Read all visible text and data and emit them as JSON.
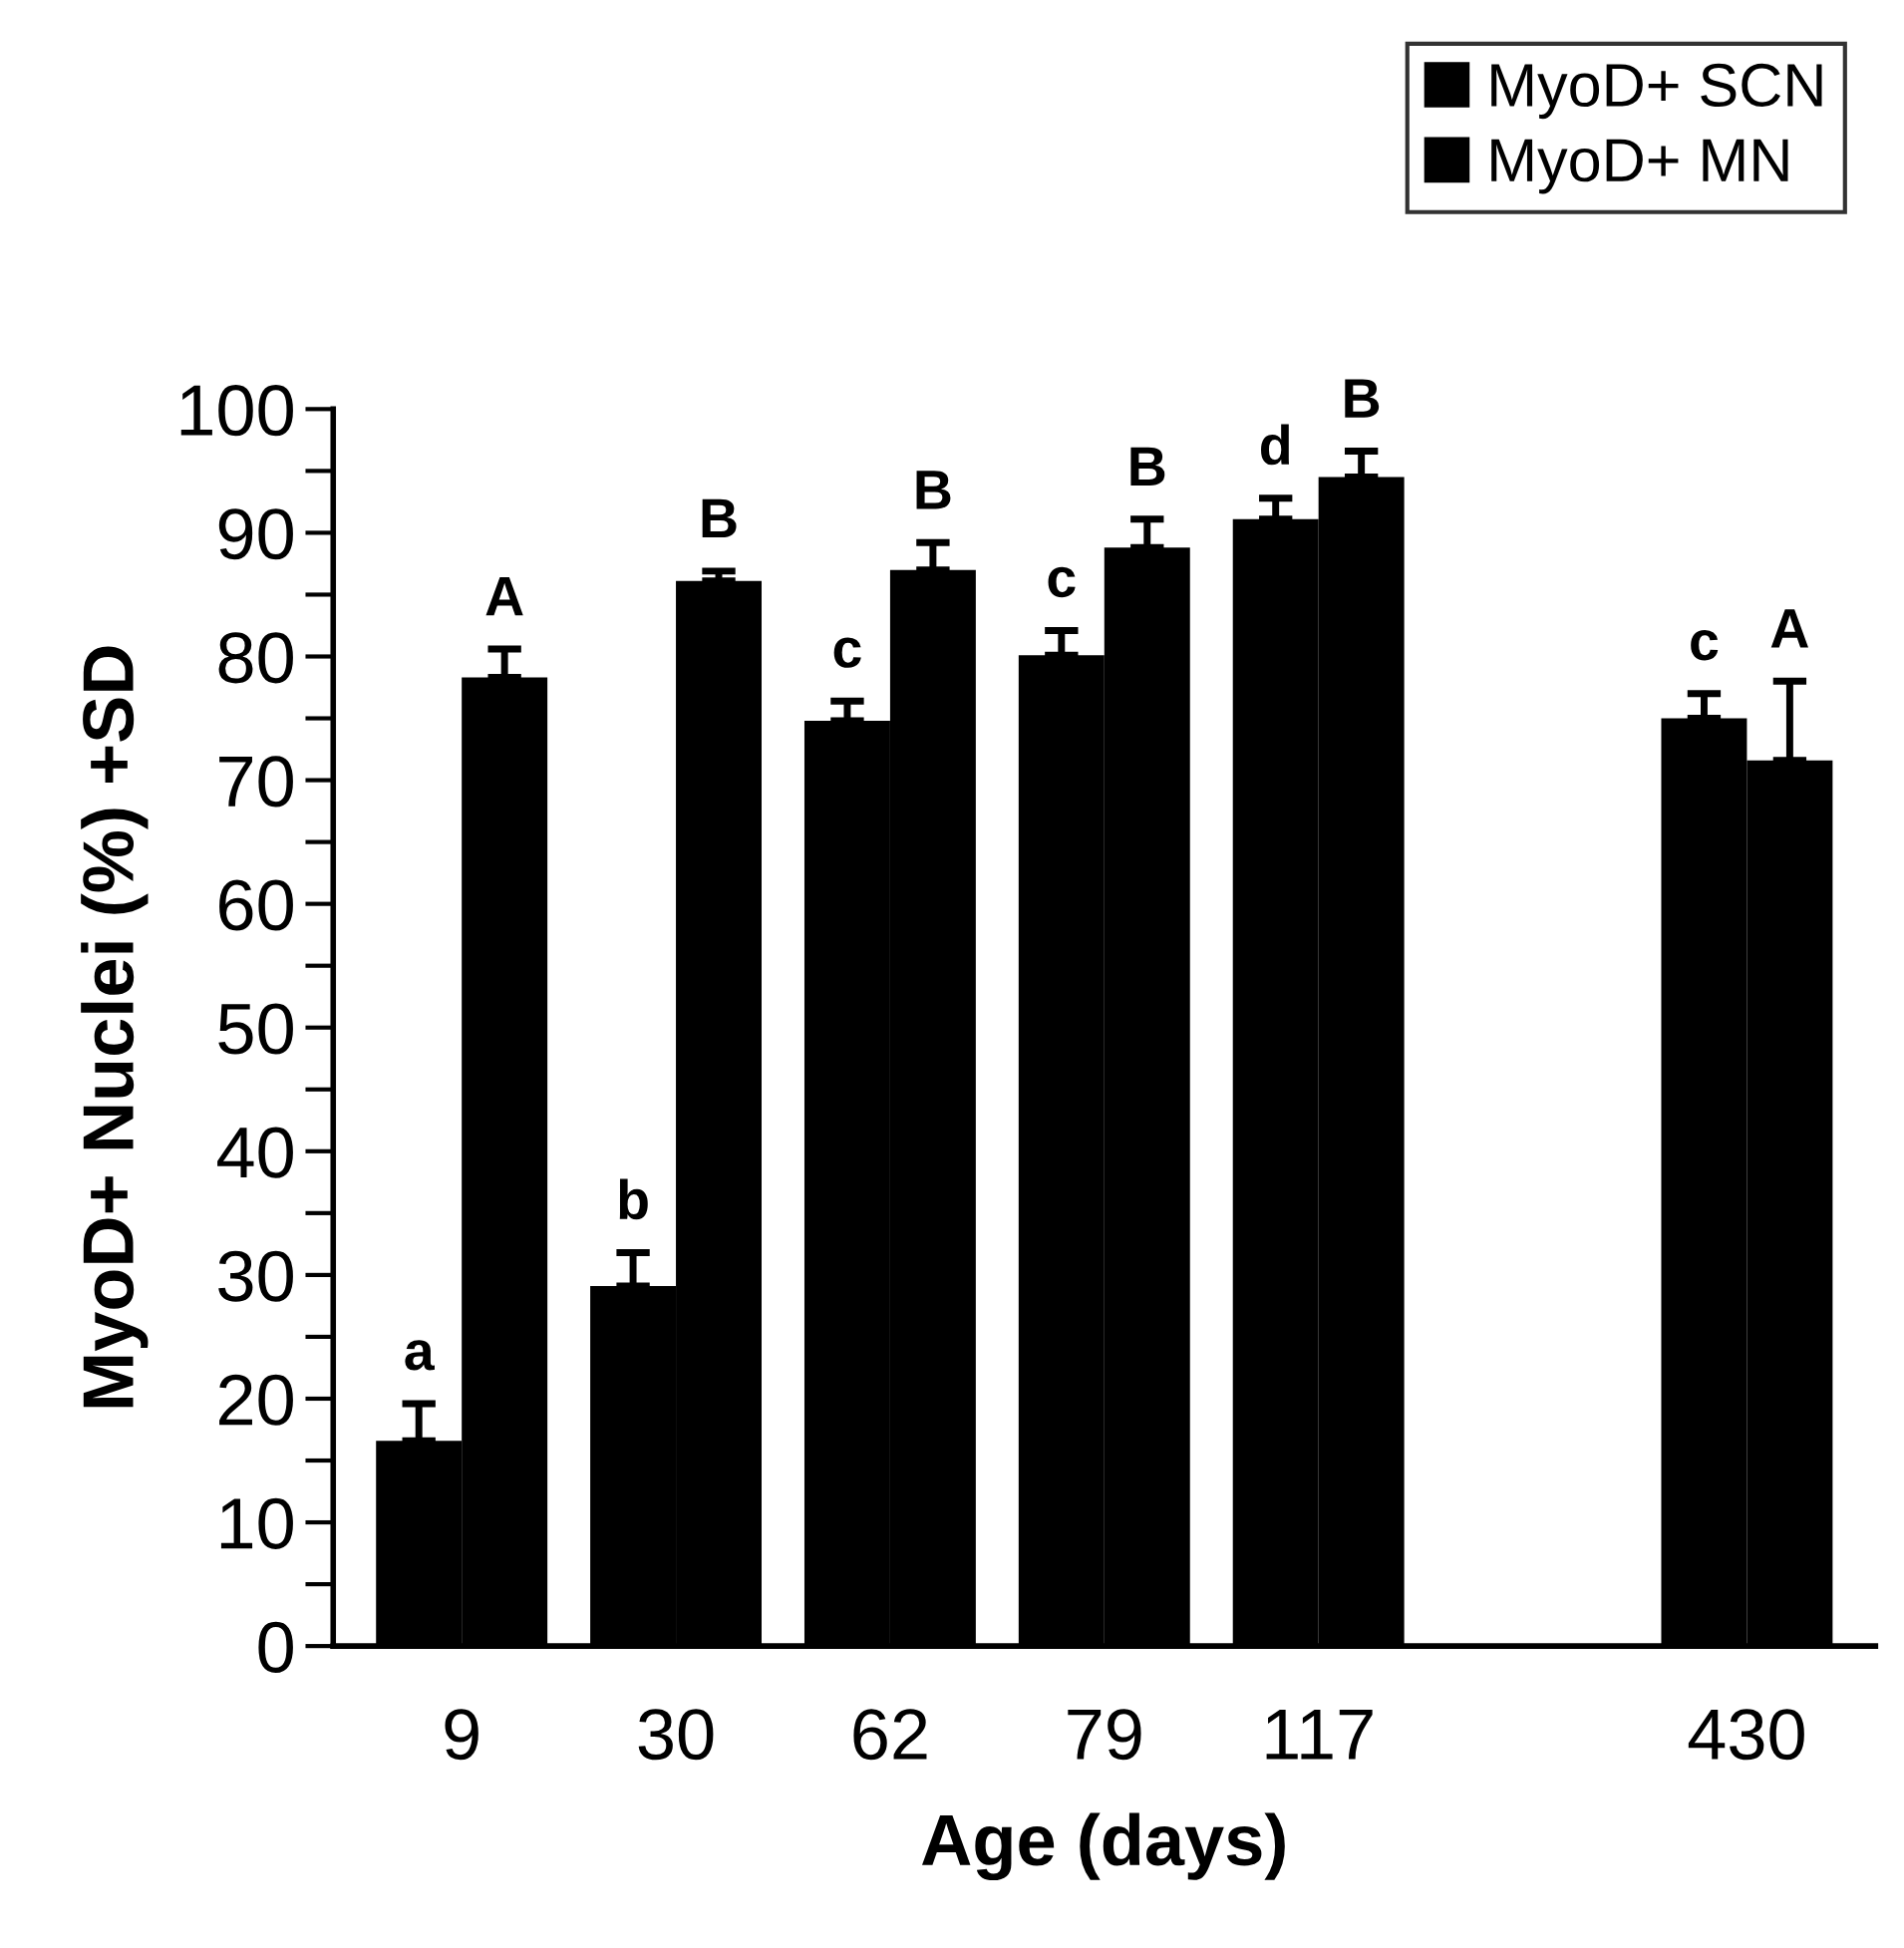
{
  "chart_data": {
    "type": "bar",
    "xlabel": "Age (days)",
    "ylabel": "MyoD+ Nuclei (%) +SD",
    "categories": [
      "9",
      "30",
      "62",
      "79",
      "117",
      null,
      "430"
    ],
    "series": [
      {
        "name": "MyoD+ SCN",
        "color": "#000000",
        "values": [
          16.6,
          29.1,
          74.8,
          80.1,
          91.1,
          null,
          75.0
        ],
        "errors": [
          [
            16.6,
            19.6
          ],
          [
            29.1,
            31.8
          ],
          [
            74.8,
            76.4
          ],
          [
            80.1,
            82.1
          ],
          [
            91.1,
            92.8
          ],
          null,
          [
            75.0,
            77.0
          ]
        ]
      },
      {
        "name": "MyoD+ MN",
        "color": "#000000",
        "values": [
          78.3,
          86.1,
          87.0,
          88.8,
          94.5,
          null,
          71.6
        ],
        "errors": [
          [
            78.3,
            80.6
          ],
          [
            86.1,
            86.9
          ],
          [
            87.0,
            89.2
          ],
          [
            88.8,
            91.1
          ],
          [
            94.5,
            96.6
          ],
          null,
          [
            71.6,
            78.0
          ]
        ]
      }
    ],
    "annotations": [
      "a",
      "A",
      "b",
      "B",
      "c",
      "B",
      "c",
      "B",
      "d",
      "B",
      "c",
      "A"
    ],
    "ylim": [
      0,
      100
    ],
    "yticks": [
      0,
      {
        "value": 5,
        "label": null
      },
      10,
      {
        "value": 15,
        "label": null
      },
      20,
      {
        "value": 25,
        "label": null
      },
      30,
      {
        "value": 35,
        "label": null
      },
      40,
      {
        "value": 45,
        "label": null
      },
      50,
      {
        "value": 55,
        "label": null
      },
      60,
      {
        "value": 65,
        "label": null
      },
      70,
      {
        "value": 75,
        "label": null
      },
      80,
      {
        "value": 85,
        "label": null
      },
      90,
      {
        "value": 95,
        "label": null
      },
      100
    ],
    "grid": false,
    "legend": "top right"
  }
}
